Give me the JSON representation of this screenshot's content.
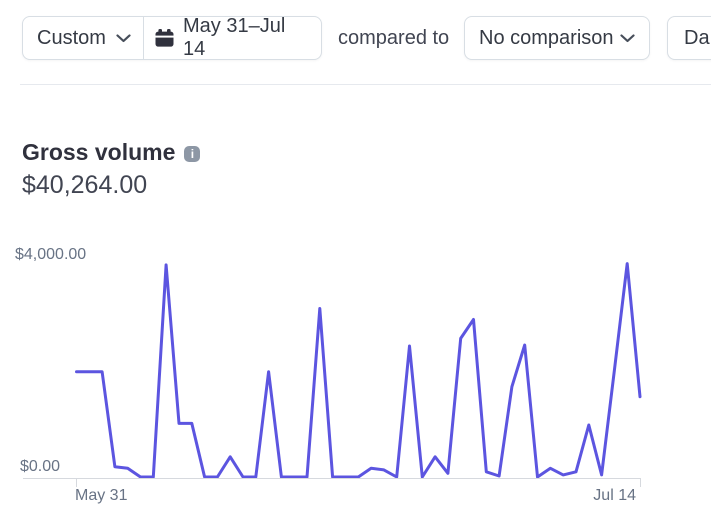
{
  "toolbar": {
    "range_type": "Custom",
    "date_range": "May 31–Jul 14",
    "compared_to": "compared to",
    "comparison": "No comparison",
    "granularity_partial": "Da"
  },
  "metric": {
    "title": "Gross volume",
    "value": "$40,264.00"
  },
  "chart_data": {
    "type": "line",
    "title": "Gross volume",
    "total_label": "$40,264.00",
    "currency": "USD",
    "ylim": [
      0,
      4000
    ],
    "y_tick_labels": [
      "$0.00",
      "$4,000.00"
    ],
    "x_tick_labels": [
      "May 31",
      "Jul 14"
    ],
    "grid": false,
    "legend_position": "none",
    "line_color": "#5c55e0",
    "axis_color": "#d6d9de",
    "x": [
      "May 31",
      "Jun 1",
      "Jun 2",
      "Jun 3",
      "Jun 4",
      "Jun 5",
      "Jun 6",
      "Jun 7",
      "Jun 8",
      "Jun 9",
      "Jun 10",
      "Jun 11",
      "Jun 12",
      "Jun 13",
      "Jun 14",
      "Jun 15",
      "Jun 16",
      "Jun 17",
      "Jun 18",
      "Jun 19",
      "Jun 20",
      "Jun 21",
      "Jun 22",
      "Jun 23",
      "Jun 24",
      "Jun 25",
      "Jun 26",
      "Jun 27",
      "Jun 28",
      "Jun 29",
      "Jun 30",
      "Jul 1",
      "Jul 2",
      "Jul 3",
      "Jul 4",
      "Jul 5",
      "Jul 6",
      "Jul 7",
      "Jul 8",
      "Jul 9",
      "Jul 10",
      "Jul 11",
      "Jul 12",
      "Jul 13",
      "Jul 14"
    ],
    "values": [
      2005,
      2005,
      2005,
      195,
      165,
      0,
      0,
      4040,
      1020,
      1020,
      0,
      0,
      385,
      0,
      0,
      2005,
      0,
      0,
      0,
      3210,
      0,
      0,
      0,
      165,
      135,
      0,
      2495,
      0,
      385,
      70,
      2640,
      3000,
      100,
      19,
      1720,
      2515,
      0,
      165,
      40,
      100,
      990,
      40,
      2035,
      4065,
      1530
    ]
  }
}
